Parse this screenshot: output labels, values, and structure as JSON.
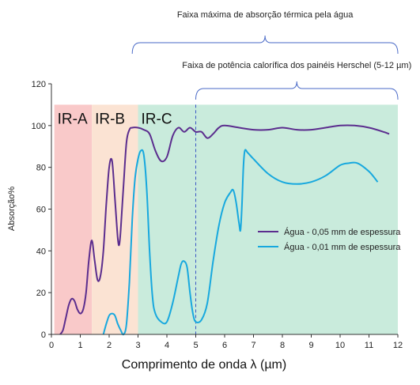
{
  "chart_data": {
    "type": "line",
    "xlabel": "Comprimento de onda λ (µm)",
    "ylabel": "Absorção%",
    "xlim": [
      0,
      12
    ],
    "ylim": [
      0,
      120
    ],
    "x_ticks": [
      0,
      1,
      2,
      3,
      4,
      5,
      6,
      7,
      8,
      9,
      10,
      11,
      12
    ],
    "y_ticks": [
      0,
      20,
      40,
      60,
      80,
      100,
      120
    ],
    "grid": false,
    "legend_position": "right",
    "bands": [
      {
        "label": "IR-A",
        "x_start": 0.1,
        "x_end": 1.4,
        "color": "#f9c9c9"
      },
      {
        "label": "IR-B",
        "x_start": 1.4,
        "x_end": 3.0,
        "color": "#fbe3d3"
      },
      {
        "label": "IR-C",
        "x_start": 3.0,
        "x_end": 12.0,
        "color": "#c9ebdc"
      }
    ],
    "band_top": 110,
    "divider_x": 5.0,
    "brackets": [
      {
        "label": "Faixa máxima de absorção térmica pela água",
        "x_start": 2.8,
        "x_end": 12.0
      },
      {
        "label": "Faixa de potência calorífica dos painéis Herschel (5-12 µm)",
        "x_start": 5.0,
        "x_end": 12.0
      }
    ],
    "series": [
      {
        "name": "Água - 0,05 mm de espessura",
        "color": "#5b2d8e",
        "points": [
          [
            0.3,
            0
          ],
          [
            0.4,
            2
          ],
          [
            0.5,
            8
          ],
          [
            0.6,
            14
          ],
          [
            0.7,
            17
          ],
          [
            0.8,
            16
          ],
          [
            0.9,
            12
          ],
          [
            1.0,
            10
          ],
          [
            1.1,
            12
          ],
          [
            1.2,
            20
          ],
          [
            1.3,
            36
          ],
          [
            1.4,
            45
          ],
          [
            1.5,
            35
          ],
          [
            1.6,
            26
          ],
          [
            1.7,
            28
          ],
          [
            1.8,
            40
          ],
          [
            1.9,
            62
          ],
          [
            2.0,
            80
          ],
          [
            2.1,
            83
          ],
          [
            2.2,
            65
          ],
          [
            2.3,
            46
          ],
          [
            2.35,
            43
          ],
          [
            2.4,
            50
          ],
          [
            2.5,
            72
          ],
          [
            2.6,
            92
          ],
          [
            2.7,
            98
          ],
          [
            2.8,
            99
          ],
          [
            3.0,
            99
          ],
          [
            3.2,
            98
          ],
          [
            3.4,
            96
          ],
          [
            3.6,
            88
          ],
          [
            3.8,
            83
          ],
          [
            4.0,
            85
          ],
          [
            4.2,
            95
          ],
          [
            4.4,
            99
          ],
          [
            4.6,
            97
          ],
          [
            4.8,
            99
          ],
          [
            5.0,
            97
          ],
          [
            5.2,
            97
          ],
          [
            5.4,
            94
          ],
          [
            5.6,
            96
          ],
          [
            5.8,
            99
          ],
          [
            6.0,
            100
          ],
          [
            6.5,
            99
          ],
          [
            7.0,
            98
          ],
          [
            7.5,
            98
          ],
          [
            8.0,
            99
          ],
          [
            8.5,
            98
          ],
          [
            9.0,
            98
          ],
          [
            9.5,
            99
          ],
          [
            10.0,
            100
          ],
          [
            10.5,
            100
          ],
          [
            11.0,
            99
          ],
          [
            11.5,
            97
          ],
          [
            11.7,
            96
          ]
        ]
      },
      {
        "name": "Água - 0,01 mm de espessura",
        "color": "#17a8de",
        "points": [
          [
            1.8,
            0
          ],
          [
            1.9,
            5
          ],
          [
            2.0,
            9
          ],
          [
            2.1,
            10
          ],
          [
            2.2,
            9
          ],
          [
            2.3,
            5
          ],
          [
            2.4,
            2
          ],
          [
            2.5,
            0
          ],
          [
            2.6,
            5
          ],
          [
            2.7,
            25
          ],
          [
            2.8,
            55
          ],
          [
            2.9,
            75
          ],
          [
            3.0,
            84
          ],
          [
            3.1,
            88
          ],
          [
            3.2,
            86
          ],
          [
            3.3,
            70
          ],
          [
            3.4,
            40
          ],
          [
            3.5,
            18
          ],
          [
            3.6,
            10
          ],
          [
            3.8,
            6
          ],
          [
            4.0,
            6
          ],
          [
            4.2,
            15
          ],
          [
            4.4,
            28
          ],
          [
            4.5,
            34
          ],
          [
            4.6,
            35
          ],
          [
            4.7,
            32
          ],
          [
            4.8,
            20
          ],
          [
            4.9,
            10
          ],
          [
            5.0,
            6
          ],
          [
            5.2,
            7
          ],
          [
            5.4,
            15
          ],
          [
            5.6,
            35
          ],
          [
            5.8,
            52
          ],
          [
            6.0,
            63
          ],
          [
            6.2,
            68
          ],
          [
            6.3,
            69
          ],
          [
            6.4,
            63
          ],
          [
            6.5,
            53
          ],
          [
            6.55,
            50
          ],
          [
            6.6,
            62
          ],
          [
            6.65,
            80
          ],
          [
            6.7,
            88
          ],
          [
            6.8,
            87
          ],
          [
            7.0,
            84
          ],
          [
            7.5,
            77
          ],
          [
            8.0,
            73
          ],
          [
            8.5,
            72
          ],
          [
            9.0,
            73
          ],
          [
            9.5,
            76
          ],
          [
            10.0,
            81
          ],
          [
            10.3,
            82
          ],
          [
            10.6,
            82
          ],
          [
            11.0,
            78
          ],
          [
            11.3,
            73
          ]
        ]
      }
    ]
  }
}
